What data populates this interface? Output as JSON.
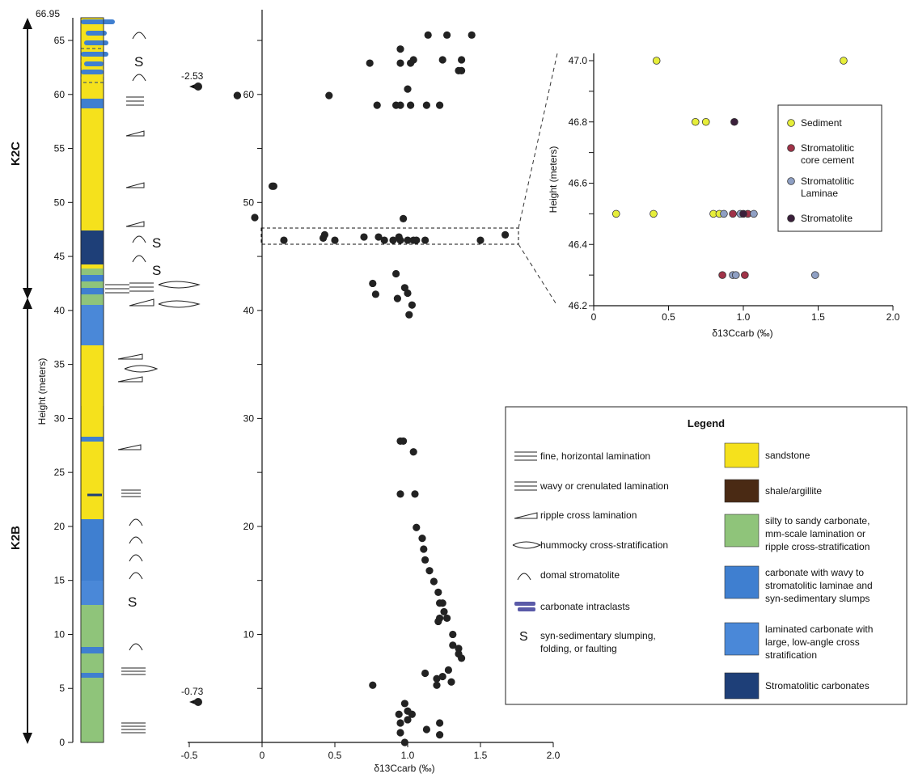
{
  "chart_data": [
    {
      "type": "scatter",
      "title": "",
      "xlabel": "δ13Ccarb (‰)",
      "ylabel": "Height (meters)",
      "xlim": [
        -0.5,
        2.0
      ],
      "ylim": [
        0,
        66.95
      ],
      "xticks": [
        "-0.5",
        "0",
        "0.5",
        "1.0",
        "1.5",
        "2.0"
      ],
      "yticks": [
        "0",
        "5",
        "10",
        "15",
        "20",
        "25",
        "30",
        "35",
        "40",
        "45",
        "50",
        "55",
        "60",
        "65",
        "66.95"
      ],
      "units": [
        "K2B",
        "K2C"
      ],
      "unit_boundary": 41.5,
      "offscale_points": [
        {
          "label": "-2.53",
          "y": 60.5
        },
        {
          "label": "-0.73",
          "y": 3.8
        }
      ],
      "series": [
        {
          "values": [
            {
              "x": 1.14,
              "y": 65.5
            },
            {
              "x": 1.27,
              "y": 65.5
            },
            {
              "x": 1.44,
              "y": 65.5
            },
            {
              "x": 0.95,
              "y": 64.2
            },
            {
              "x": 1.24,
              "y": 63.2
            },
            {
              "x": 1.37,
              "y": 63.2
            },
            {
              "x": 0.74,
              "y": 62.9
            },
            {
              "x": 0.95,
              "y": 62.9
            },
            {
              "x": 1.04,
              "y": 63.2
            },
            {
              "x": 1.02,
              "y": 62.9
            },
            {
              "x": 1.37,
              "y": 62.2
            },
            {
              "x": 1.35,
              "y": 62.2
            },
            {
              "x": 1.0,
              "y": 60.5
            },
            {
              "x": -0.44,
              "y": 60.5
            },
            {
              "x": -0.17,
              "y": 59.9
            },
            {
              "x": 0.46,
              "y": 59.9
            },
            {
              "x": 0.79,
              "y": 59.0
            },
            {
              "x": 0.92,
              "y": 59.0
            },
            {
              "x": 0.95,
              "y": 59.0
            },
            {
              "x": 1.02,
              "y": 59.0
            },
            {
              "x": 1.13,
              "y": 59.0
            },
            {
              "x": 1.22,
              "y": 59.0
            },
            {
              "x": 0.07,
              "y": 51.5
            },
            {
              "x": 0.08,
              "y": 51.5
            },
            {
              "x": -0.05,
              "y": 48.6
            },
            {
              "x": 0.97,
              "y": 48.5
            },
            {
              "x": 0.43,
              "y": 47.0
            },
            {
              "x": 1.67,
              "y": 47.0
            },
            {
              "x": 0.42,
              "y": 46.7
            },
            {
              "x": 0.7,
              "y": 46.8
            },
            {
              "x": 0.8,
              "y": 46.8
            },
            {
              "x": 0.94,
              "y": 46.8
            },
            {
              "x": 0.15,
              "y": 46.5
            },
            {
              "x": 0.5,
              "y": 46.5
            },
            {
              "x": 0.84,
              "y": 46.5
            },
            {
              "x": 0.9,
              "y": 46.5
            },
            {
              "x": 1.0,
              "y": 46.5
            },
            {
              "x": 1.06,
              "y": 46.5
            },
            {
              "x": 1.12,
              "y": 46.5
            },
            {
              "x": 1.5,
              "y": 46.5
            },
            {
              "x": 0.95,
              "y": 46.5
            },
            {
              "x": 1.04,
              "y": 46.5
            },
            {
              "x": 0.92,
              "y": 43.4
            },
            {
              "x": 0.76,
              "y": 42.5
            },
            {
              "x": 0.78,
              "y": 41.5
            },
            {
              "x": 0.93,
              "y": 41.1
            },
            {
              "x": 0.98,
              "y": 42.1
            },
            {
              "x": 1.0,
              "y": 41.6
            },
            {
              "x": 1.03,
              "y": 40.5
            },
            {
              "x": 1.01,
              "y": 39.6
            },
            {
              "x": 0.95,
              "y": 27.9
            },
            {
              "x": 0.97,
              "y": 27.9
            },
            {
              "x": 1.04,
              "y": 26.9
            },
            {
              "x": 0.95,
              "y": 23.0
            },
            {
              "x": 1.05,
              "y": 23.0
            },
            {
              "x": 1.06,
              "y": 19.9
            },
            {
              "x": 1.1,
              "y": 18.9
            },
            {
              "x": 1.11,
              "y": 17.9
            },
            {
              "x": 1.12,
              "y": 16.9
            },
            {
              "x": 1.15,
              "y": 15.9
            },
            {
              "x": 1.18,
              "y": 14.9
            },
            {
              "x": 1.21,
              "y": 13.9
            },
            {
              "x": 1.22,
              "y": 12.9
            },
            {
              "x": 1.24,
              "y": 12.9
            },
            {
              "x": 1.25,
              "y": 12.1
            },
            {
              "x": 1.22,
              "y": 11.5
            },
            {
              "x": 1.27,
              "y": 11.5
            },
            {
              "x": 1.21,
              "y": 11.2
            },
            {
              "x": 1.31,
              "y": 10.0
            },
            {
              "x": 1.31,
              "y": 9.0
            },
            {
              "x": 1.35,
              "y": 8.7
            },
            {
              "x": 1.35,
              "y": 8.2
            },
            {
              "x": 1.37,
              "y": 7.8
            },
            {
              "x": 1.28,
              "y": 6.7
            },
            {
              "x": 1.12,
              "y": 6.4
            },
            {
              "x": 1.24,
              "y": 6.1
            },
            {
              "x": 1.2,
              "y": 5.9
            },
            {
              "x": 1.3,
              "y": 5.6
            },
            {
              "x": 1.2,
              "y": 5.3
            },
            {
              "x": 0.76,
              "y": 5.3
            },
            {
              "x": -0.44,
              "y": 3.8
            },
            {
              "x": 0.98,
              "y": 3.6
            },
            {
              "x": 1.0,
              "y": 2.9
            },
            {
              "x": 0.94,
              "y": 2.6
            },
            {
              "x": 1.03,
              "y": 2.6
            },
            {
              "x": 1.0,
              "y": 2.1
            },
            {
              "x": 0.95,
              "y": 1.8
            },
            {
              "x": 1.22,
              "y": 1.8
            },
            {
              "x": 1.13,
              "y": 1.2
            },
            {
              "x": 0.95,
              "y": 0.9
            },
            {
              "x": 1.22,
              "y": 0.7
            },
            {
              "x": 0.98,
              "y": 0.0
            }
          ]
        }
      ]
    },
    {
      "type": "scatter",
      "title": "",
      "xlabel": "δ13Ccarb (‰)",
      "ylabel": "Height (meters)",
      "xlim": [
        0,
        2.0
      ],
      "ylim": [
        46.2,
        47.05
      ],
      "xticks": [
        "0",
        "0.5",
        "1.0",
        "1.5",
        "2.0"
      ],
      "yticks": [
        "46.2",
        "46.3",
        "46.4",
        "46.5",
        "46.6",
        "46.7",
        "46.8",
        "46.9",
        "47.0"
      ],
      "legend_position": "top-right",
      "series": [
        {
          "name": "Sediment",
          "color": "#e6ee3a",
          "values": [
            {
              "x": 0.42,
              "y": 47.0
            },
            {
              "x": 1.67,
              "y": 47.0
            },
            {
              "x": 0.68,
              "y": 46.8
            },
            {
              "x": 0.75,
              "y": 46.8
            },
            {
              "x": 0.15,
              "y": 46.5
            },
            {
              "x": 0.4,
              "y": 46.5
            },
            {
              "x": 0.8,
              "y": 46.5
            },
            {
              "x": 0.84,
              "y": 46.5
            }
          ]
        },
        {
          "name": "Stromatolitic core cement",
          "color": "#a03348",
          "values": [
            {
              "x": 0.93,
              "y": 46.5
            },
            {
              "x": 1.03,
              "y": 46.5
            },
            {
              "x": 0.86,
              "y": 46.3
            },
            {
              "x": 1.01,
              "y": 46.3
            }
          ]
        },
        {
          "name": "Stromatolitic Laminae",
          "color": "#8fa0c4",
          "values": [
            {
              "x": 0.87,
              "y": 46.5
            },
            {
              "x": 0.98,
              "y": 46.5
            },
            {
              "x": 1.07,
              "y": 46.5
            },
            {
              "x": 0.93,
              "y": 46.3
            },
            {
              "x": 0.95,
              "y": 46.3
            },
            {
              "x": 1.48,
              "y": 46.3
            }
          ]
        },
        {
          "name": "Stromatolite",
          "color": "#3a1f3a",
          "values": [
            {
              "x": 0.94,
              "y": 46.8
            },
            {
              "x": 1.0,
              "y": 46.5
            }
          ]
        }
      ]
    }
  ],
  "column": {
    "ylabel": "Height (meters)",
    "top_value": "66.95",
    "unit_top": "K2C",
    "unit_bottom": "K2B",
    "offscale_top": "-2.53",
    "offscale_bottom": "-0.73",
    "slump_symbol": "S"
  },
  "legend": {
    "title": "Legend",
    "left_items": [
      {
        "icon": "horizontal-lamination",
        "label": "fine, horizontal lamination"
      },
      {
        "icon": "wavy-lamination",
        "label": "wavy or crenulated lamination"
      },
      {
        "icon": "ripple-cross-lamination",
        "label": "ripple cross lamination"
      },
      {
        "icon": "hummocky-cross-stratification",
        "label": "hummocky cross-stratification"
      },
      {
        "icon": "domal-stromatolite",
        "label": "domal stromatolite"
      },
      {
        "icon": "carbonate-intraclasts",
        "label": "carbonate intraclasts"
      },
      {
        "icon": "slump-S",
        "label": "syn-sedimentary slumping, folding, or faulting"
      }
    ],
    "right_items": [
      {
        "color": "#f5e11c",
        "label": "sandstone"
      },
      {
        "color": "#4a2a14",
        "label": "shale/argillite"
      },
      {
        "color": "#8fc47a",
        "label": "silty to sandy carbonate, mm-scale lamination or ripple cross-stratification"
      },
      {
        "color": "#3f7fd0",
        "label": "carbonate with wavy to stromatolitic laminae and syn-sedimentary slumps"
      },
      {
        "color": "#4a88d8",
        "label": "laminated carbonate with large, low-angle cross stratification"
      },
      {
        "color": "#1e3f78",
        "label": "Stromatolitic carbonates"
      }
    ]
  }
}
